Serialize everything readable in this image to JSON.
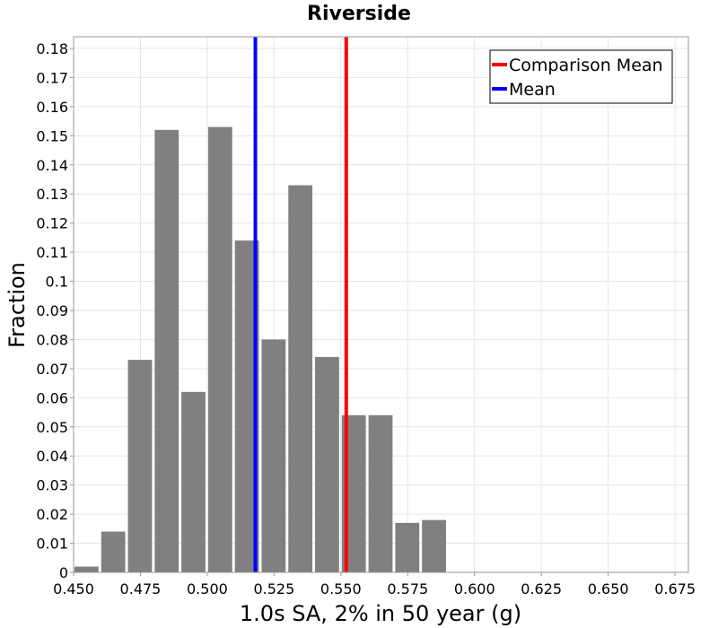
{
  "chart_data": {
    "type": "bar",
    "title": "Riverside",
    "xlabel": "1.0s SA, 2% in 50 year (g)",
    "ylabel": "Fraction",
    "xlim": [
      0.45,
      0.68
    ],
    "ylim": [
      0,
      0.184
    ],
    "bin_width": 0.01,
    "bin_starts": [
      0.45,
      0.46,
      0.47,
      0.48,
      0.49,
      0.5,
      0.51,
      0.52,
      0.53,
      0.54,
      0.55,
      0.56,
      0.57,
      0.58
    ],
    "values": [
      0.002,
      0.014,
      0.073,
      0.152,
      0.062,
      0.153,
      0.114,
      0.08,
      0.133,
      0.074,
      0.054,
      0.054,
      0.017,
      0.018
    ],
    "bar_color": "#808080",
    "x_ticks": [
      "0.450",
      "0.475",
      "0.500",
      "0.525",
      "0.550",
      "0.575",
      "0.600",
      "0.625",
      "0.650",
      "0.675"
    ],
    "x_tick_values": [
      0.45,
      0.475,
      0.5,
      0.525,
      0.55,
      0.575,
      0.6,
      0.625,
      0.65,
      0.675
    ],
    "y_ticks": [
      "0",
      "0.01",
      "0.02",
      "0.03",
      "0.04",
      "0.05",
      "0.06",
      "0.07",
      "0.08",
      "0.09",
      "0.1",
      "0.11",
      "0.12",
      "0.13",
      "0.14",
      "0.15",
      "0.16",
      "0.17",
      "0.18"
    ],
    "y_tick_values": [
      0,
      0.01,
      0.02,
      0.03,
      0.04,
      0.05,
      0.06,
      0.07,
      0.08,
      0.09,
      0.1,
      0.11,
      0.12,
      0.13,
      0.14,
      0.15,
      0.16,
      0.17,
      0.18
    ],
    "grid": true,
    "lines": [
      {
        "name": "Comparison Mean",
        "x": 0.552,
        "color": "#ff0000"
      },
      {
        "name": "Mean",
        "x": 0.518,
        "color": "#0000ff"
      }
    ],
    "legend": {
      "position": "top-right",
      "entries": [
        {
          "label": "Comparison Mean",
          "color": "#ff0000"
        },
        {
          "label": "Mean",
          "color": "#0000ff"
        }
      ]
    }
  }
}
